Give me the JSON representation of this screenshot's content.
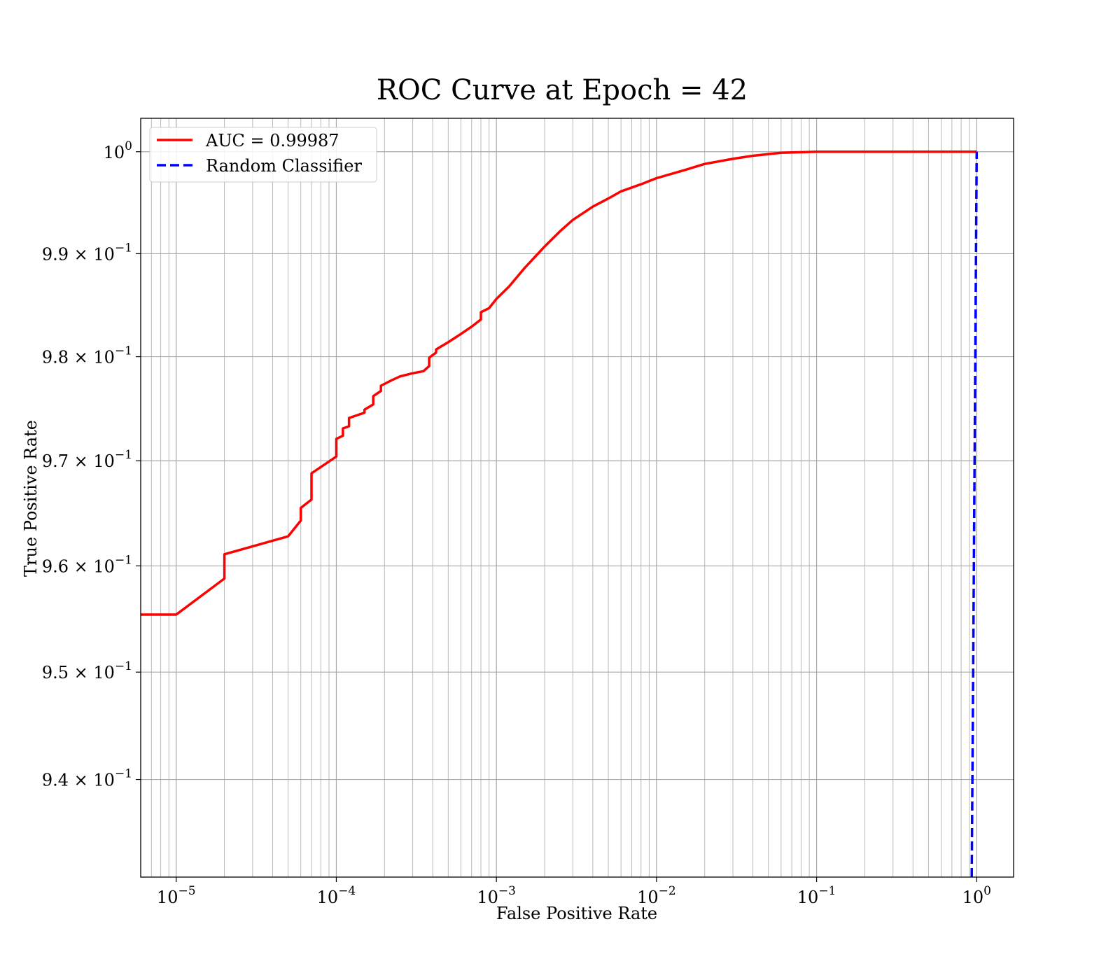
{
  "chart_data": {
    "type": "line",
    "title": "ROC Curve at Epoch = 42",
    "xlabel": "False Positive Rate",
    "ylabel": "True Positive Rate",
    "xscale": "log",
    "yscale": "log",
    "xlim": [
      6e-06,
      1.7
    ],
    "ylim": [
      0.931,
      1.0033
    ],
    "grid": true,
    "grid_minor": true,
    "legend_position": "upper-left",
    "x_ticks": [
      {
        "value": 1e-05,
        "base": "10",
        "exp": "−5"
      },
      {
        "value": 0.0001,
        "base": "10",
        "exp": "−4"
      },
      {
        "value": 0.001,
        "base": "10",
        "exp": "−3"
      },
      {
        "value": 0.01,
        "base": "10",
        "exp": "−2"
      },
      {
        "value": 0.1,
        "base": "10",
        "exp": "−1"
      },
      {
        "value": 1,
        "base": "10",
        "exp": "0"
      }
    ],
    "y_ticks": [
      {
        "value": 0.94,
        "mant": "9.4",
        "times": " × ",
        "base": "10",
        "exp": "−1"
      },
      {
        "value": 0.95,
        "mant": "9.5",
        "times": " × ",
        "base": "10",
        "exp": "−1"
      },
      {
        "value": 0.96,
        "mant": "9.6",
        "times": " × ",
        "base": "10",
        "exp": "−1"
      },
      {
        "value": 0.97,
        "mant": "9.7",
        "times": " × ",
        "base": "10",
        "exp": "−1"
      },
      {
        "value": 0.98,
        "mant": "9.8",
        "times": " × ",
        "base": "10",
        "exp": "−1"
      },
      {
        "value": 0.99,
        "mant": "9.9",
        "times": " × ",
        "base": "10",
        "exp": "−1"
      },
      {
        "value": 1.0,
        "mant": "",
        "times": "",
        "base": "10",
        "exp": "0"
      }
    ],
    "series": [
      {
        "name": "AUC = 0.99987",
        "color": "#ff0000",
        "style": "solid",
        "x": [
          6e-06,
          1e-05,
          2e-05,
          2e-05,
          5e-05,
          6e-05,
          6e-05,
          7e-05,
          7e-05,
          0.0001,
          0.0001,
          0.00011,
          0.00011,
          0.00012,
          0.00012,
          0.00015,
          0.00015,
          0.00017,
          0.00017,
          0.00019,
          0.00019,
          0.00022,
          0.00025,
          0.0003,
          0.00035,
          0.00038,
          0.00038,
          0.00042,
          0.00042,
          0.0005,
          0.0006,
          0.0007,
          0.0008,
          0.0008,
          0.0009,
          0.001,
          0.0012,
          0.0015,
          0.002,
          0.0025,
          0.003,
          0.004,
          0.005,
          0.006,
          0.008,
          0.01,
          0.015,
          0.02,
          0.03,
          0.04,
          0.06,
          0.1,
          1
        ],
        "y": [
          0.9554,
          0.9554,
          0.9588,
          0.9611,
          0.9628,
          0.9643,
          0.9655,
          0.9663,
          0.9688,
          0.9704,
          0.9721,
          0.9724,
          0.9731,
          0.9733,
          0.9741,
          0.9746,
          0.9749,
          0.9754,
          0.9762,
          0.9767,
          0.9772,
          0.9777,
          0.9781,
          0.9784,
          0.9786,
          0.9791,
          0.9799,
          0.9804,
          0.9807,
          0.9814,
          0.9822,
          0.9829,
          0.9836,
          0.9843,
          0.9847,
          0.9856,
          0.9868,
          0.9886,
          0.9907,
          0.9922,
          0.9933,
          0.9946,
          0.9954,
          0.9961,
          0.9968,
          0.9974,
          0.9982,
          0.9988,
          0.9993,
          0.9996,
          0.9999,
          1.0,
          1.0
        ]
      },
      {
        "name": "Random Classifier",
        "color": "#0000ff",
        "style": "dashed",
        "x": [
          0.931,
          1.0
        ],
        "y": [
          0.931,
          1.0
        ]
      }
    ]
  }
}
